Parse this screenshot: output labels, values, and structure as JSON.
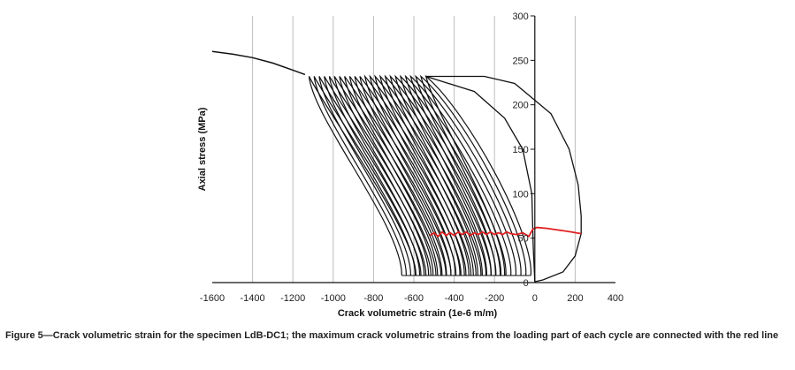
{
  "chart_data": {
    "type": "line",
    "xlabel": "Crack volumetric strain (1e-6 m/m)",
    "ylabel": "Axial stress (MPa)",
    "xlim": [
      -1600,
      400
    ],
    "ylim": [
      0,
      300
    ],
    "x_ticks": [
      "-1600",
      "-1400",
      "-1200",
      "-1000",
      "-800",
      "-600",
      "-400",
      "-200",
      "0",
      "200",
      "400"
    ],
    "y_ticks": [
      "0",
      "50",
      "100",
      "150",
      "200",
      "250",
      "300"
    ],
    "grid": "vertical",
    "colors": {
      "cycles": "#111111",
      "max_strain_line": "#e02020",
      "grid": "#bdbdbd"
    },
    "virgin_curve": [
      {
        "x": -1600,
        "y": 260
      },
      {
        "x": -1500,
        "y": 257
      },
      {
        "x": -1400,
        "y": 253
      },
      {
        "x": -1300,
        "y": 247
      },
      {
        "x": -1200,
        "y": 239
      },
      {
        "x": -1140,
        "y": 234
      }
    ],
    "first_cycle": {
      "loading": [
        {
          "x": -540,
          "y": 232
        },
        {
          "x": -250,
          "y": 232
        },
        {
          "x": -100,
          "y": 224
        },
        {
          "x": 80,
          "y": 190
        },
        {
          "x": 170,
          "y": 150
        },
        {
          "x": 215,
          "y": 110
        },
        {
          "x": 230,
          "y": 75
        },
        {
          "x": 230,
          "y": 55
        },
        {
          "x": 200,
          "y": 30
        },
        {
          "x": 140,
          "y": 12
        },
        {
          "x": 40,
          "y": 3
        },
        {
          "x": 0,
          "y": 1
        }
      ],
      "unloading": [
        {
          "x": -540,
          "y": 232
        },
        {
          "x": -300,
          "y": 215
        },
        {
          "x": -150,
          "y": 185
        },
        {
          "x": -60,
          "y": 150
        },
        {
          "x": -15,
          "y": 100
        },
        {
          "x": -8,
          "y": 40
        },
        {
          "x": 0,
          "y": 1
        }
      ]
    },
    "cycles": {
      "count": 24,
      "peak_stress": 232,
      "min_stress": 8,
      "peak_x_first": -540,
      "peak_x_last": -1120,
      "base_x_first": -20,
      "base_x_last": -590
    },
    "max_strain_line": [
      {
        "x": -520,
        "y": 53
      },
      {
        "x": -500,
        "y": 56
      },
      {
        "x": -480,
        "y": 52
      },
      {
        "x": -460,
        "y": 57
      },
      {
        "x": -440,
        "y": 53
      },
      {
        "x": -420,
        "y": 56
      },
      {
        "x": -400,
        "y": 53
      },
      {
        "x": -380,
        "y": 57
      },
      {
        "x": -360,
        "y": 54
      },
      {
        "x": -340,
        "y": 57
      },
      {
        "x": -320,
        "y": 53
      },
      {
        "x": -300,
        "y": 56
      },
      {
        "x": -280,
        "y": 54
      },
      {
        "x": -260,
        "y": 57
      },
      {
        "x": -240,
        "y": 54
      },
      {
        "x": -220,
        "y": 57
      },
      {
        "x": -200,
        "y": 54
      },
      {
        "x": -180,
        "y": 56
      },
      {
        "x": -160,
        "y": 54
      },
      {
        "x": -140,
        "y": 57
      },
      {
        "x": -120,
        "y": 55
      },
      {
        "x": -90,
        "y": 54
      },
      {
        "x": -60,
        "y": 56
      },
      {
        "x": -30,
        "y": 52
      },
      {
        "x": -10,
        "y": 60
      },
      {
        "x": 10,
        "y": 62
      },
      {
        "x": 60,
        "y": 61
      },
      {
        "x": 120,
        "y": 59
      },
      {
        "x": 180,
        "y": 57
      },
      {
        "x": 230,
        "y": 55
      }
    ]
  },
  "caption": {
    "text": "Figure 5—Crack volumetric strain for the specimen LdB-DC1; the maximum crack volumetric strains from the loading part of each cycle are connected with the red line"
  }
}
